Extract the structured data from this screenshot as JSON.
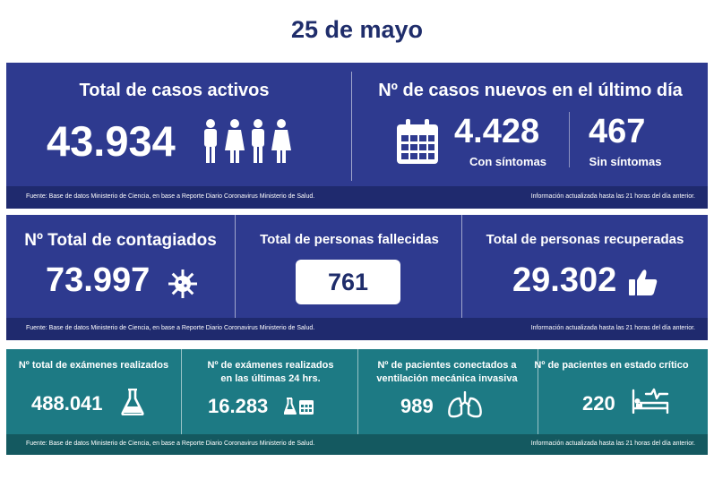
{
  "date_title": "25 de mayo",
  "row1": {
    "active": {
      "label": "Total de casos activos",
      "value": "43.934",
      "icon": "people-icon"
    },
    "new": {
      "label": "Nº de casos nuevos en el último día",
      "with_symptoms_value": "4.428",
      "with_symptoms_label": "Con síntomas",
      "without_symptoms_value": "467",
      "without_symptoms_label": "Sin síntomas",
      "icon": "calendar-icon"
    },
    "footer_left": "Fuente: Base de datos Ministerio de Ciencia, en base a Reporte Diario Coronavirus Ministerio de Salud.",
    "footer_right": "Información actualizada hasta las 21 horas  del día anterior."
  },
  "row2": {
    "contagiados": {
      "label": "Nº Total de contagiados",
      "value": "73.997",
      "icon": "virus-icon"
    },
    "fallecidos": {
      "label": "Total de personas fallecidas",
      "value": "761"
    },
    "recuperados": {
      "label": "Total de personas recuperadas",
      "value": "29.302",
      "icon": "thumbs-up-icon"
    },
    "footer_left": "Fuente: Base de datos Ministerio de Ciencia, en base a Reporte Diario Coronavirus Ministerio de Salud.",
    "footer_right": "Información actualizada hasta las 21 horas  del día anterior."
  },
  "row3": {
    "examenes": {
      "label": "Nº total de exámenes realizados",
      "value": "488.041",
      "icon": "flask-icon"
    },
    "examenes24": {
      "label_line1": "Nº de exámenes realizados",
      "label_line2": "en las últimas 24 hrs.",
      "value": "16.283",
      "icon": "flask-calendar-icon"
    },
    "ventilacion": {
      "label_line1": "Nº de pacientes conectados a",
      "label_line2": "ventilación mecánica invasiva",
      "value": "989",
      "icon": "lungs-icon"
    },
    "critico": {
      "label": "Nº de pacientes en estado crítico",
      "value": "220",
      "icon": "hospital-bed-icon"
    },
    "footer_left": "Fuente: Base de datos Ministerio de Ciencia, en base a Reporte Diario Coronavirus Ministerio de Salud.",
    "footer_right": "Información actualizada hasta las 21 horas  del día anterior."
  },
  "colors": {
    "blue": "#2e3a8f",
    "teal": "#1d7a84",
    "title": "#1f2d6b"
  }
}
